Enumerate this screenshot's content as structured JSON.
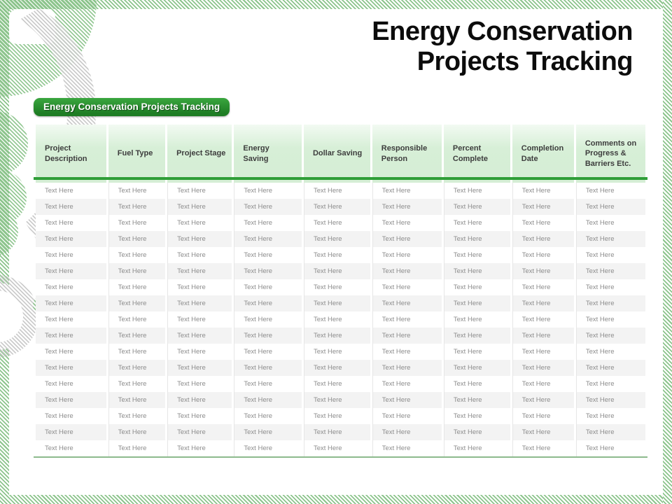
{
  "title": {
    "full": "Energy Conservation Projects Tracking",
    "lines": [
      "Energy Conservation",
      "Projects Tracking"
    ]
  },
  "badge": {
    "label": "Energy Conservation Projects Tracking"
  },
  "table": {
    "headers": [
      "Project Description",
      "Fuel Type",
      "Project Stage",
      "Energy Saving",
      "Dollar Saving",
      "Responsible Person",
      "Percent Complete",
      "Completion Date",
      "Comments on Progress & Barriers Etc."
    ],
    "placeholder": "Text Here",
    "row_count": 17,
    "rows": [
      [
        "Text Here",
        "Text Here",
        "Text Here",
        "Text Here",
        "Text Here",
        "Text Here",
        "Text Here",
        "Text Here",
        "Text Here"
      ],
      [
        "Text Here",
        "Text Here",
        "Text Here",
        "Text Here",
        "Text Here",
        "Text Here",
        "Text Here",
        "Text Here",
        "Text Here"
      ],
      [
        "Text Here",
        "Text Here",
        "Text Here",
        "Text Here",
        "Text Here",
        "Text Here",
        "Text Here",
        "Text Here",
        "Text Here"
      ],
      [
        "Text Here",
        "Text Here",
        "Text Here",
        "Text Here",
        "Text Here",
        "Text Here",
        "Text Here",
        "Text Here",
        "Text Here"
      ],
      [
        "Text Here",
        "Text Here",
        "Text Here",
        "Text Here",
        "Text Here",
        "Text Here",
        "Text Here",
        "Text Here",
        "Text Here"
      ],
      [
        "Text Here",
        "Text Here",
        "Text Here",
        "Text Here",
        "Text Here",
        "Text Here",
        "Text Here",
        "Text Here",
        "Text Here"
      ],
      [
        "Text Here",
        "Text Here",
        "Text Here",
        "Text Here",
        "Text Here",
        "Text Here",
        "Text Here",
        "Text Here",
        "Text Here"
      ],
      [
        "Text Here",
        "Text Here",
        "Text Here",
        "Text Here",
        "Text Here",
        "Text Here",
        "Text Here",
        "Text Here",
        "Text Here"
      ],
      [
        "Text Here",
        "Text Here",
        "Text Here",
        "Text Here",
        "Text Here",
        "Text Here",
        "Text Here",
        "Text Here",
        "Text Here"
      ],
      [
        "Text Here",
        "Text Here",
        "Text Here",
        "Text Here",
        "Text Here",
        "Text Here",
        "Text Here",
        "Text Here",
        "Text Here"
      ],
      [
        "Text Here",
        "Text Here",
        "Text Here",
        "Text Here",
        "Text Here",
        "Text Here",
        "Text Here",
        "Text Here",
        "Text Here"
      ],
      [
        "Text Here",
        "Text Here",
        "Text Here",
        "Text Here",
        "Text Here",
        "Text Here",
        "Text Here",
        "Text Here",
        "Text Here"
      ],
      [
        "Text Here",
        "Text Here",
        "Text Here",
        "Text Here",
        "Text Here",
        "Text Here",
        "Text Here",
        "Text Here",
        "Text Here"
      ],
      [
        "Text Here",
        "Text Here",
        "Text Here",
        "Text Here",
        "Text Here",
        "Text Here",
        "Text Here",
        "Text Here",
        "Text Here"
      ],
      [
        "Text Here",
        "Text Here",
        "Text Here",
        "Text Here",
        "Text Here",
        "Text Here",
        "Text Here",
        "Text Here",
        "Text Here"
      ],
      [
        "Text Here",
        "Text Here",
        "Text Here",
        "Text Here",
        "Text Here",
        "Text Here",
        "Text Here",
        "Text Here",
        "Text Here"
      ],
      [
        "Text Here",
        "Text Here",
        "Text Here",
        "Text Here",
        "Text Here",
        "Text Here",
        "Text Here",
        "Text Here",
        "Text Here"
      ]
    ]
  },
  "colors": {
    "accent_green": "#2f9e38",
    "badge_green": "#1e7d24",
    "header_bg": "#d7efd7",
    "stripe_green": "#8cc48c",
    "stripe_gray": "#c7c7c7",
    "table_bottom_rule": "#8dba8d",
    "cell_text": "#8c8c8c"
  }
}
